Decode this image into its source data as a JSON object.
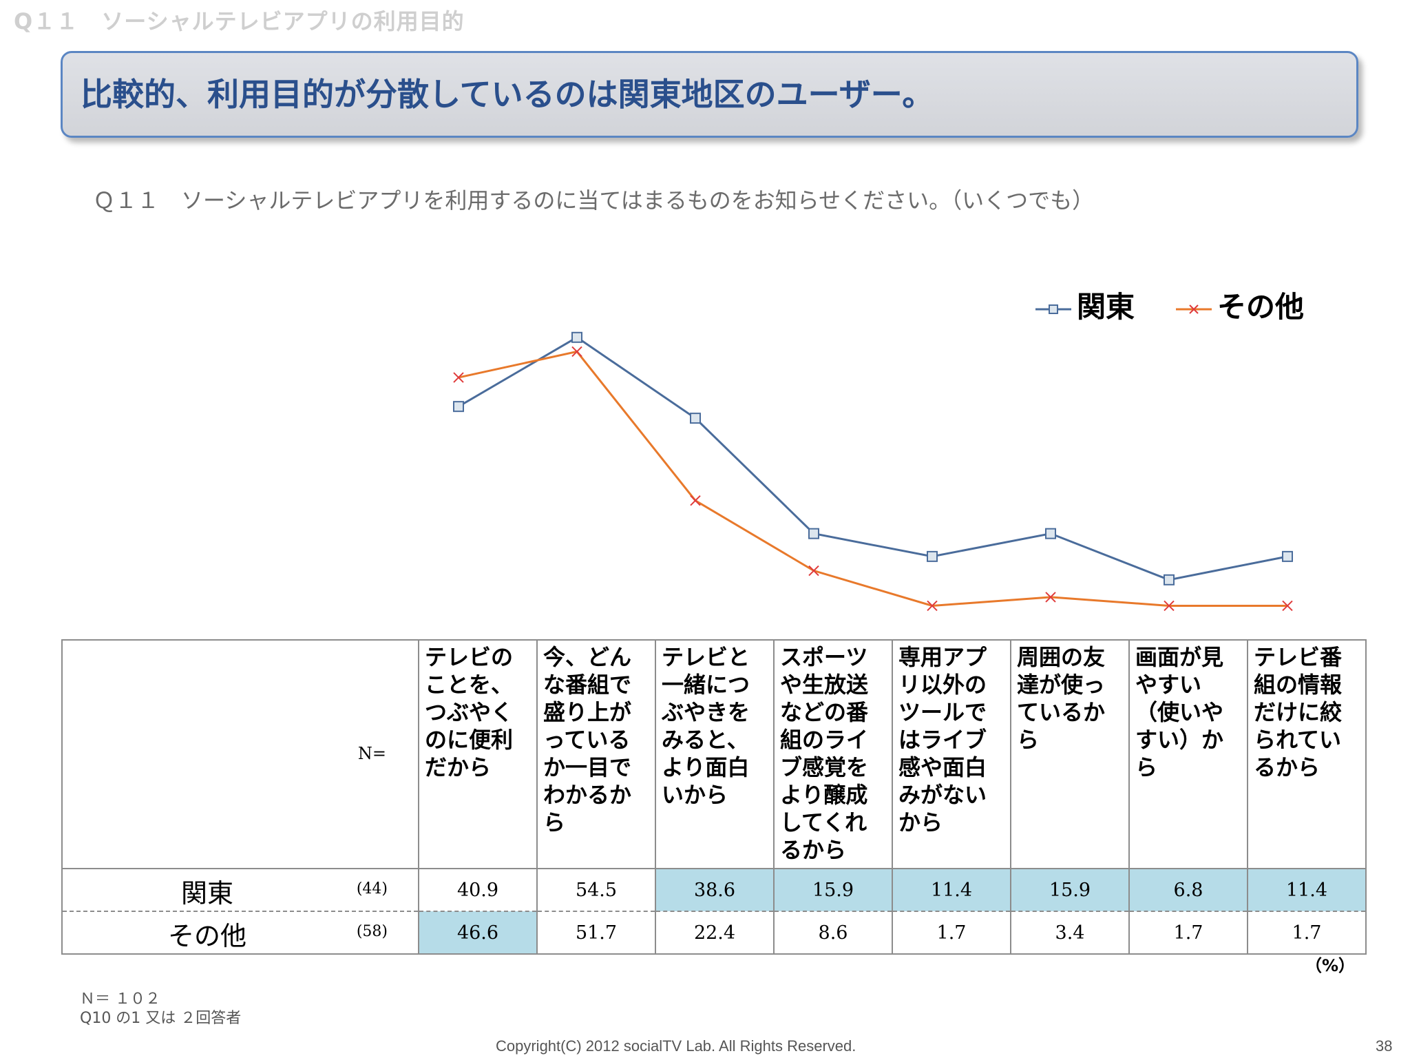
{
  "slide_label": "Q１１　ソーシャルテレビアプリの利用目的",
  "headline": "比較的、利用目的が分散しているのは関東地区のユーザー。",
  "question": "Ｑ１１　ソーシャルテレビアプリを利用するのに当てはまるものをお知らせください。（いくつでも）",
  "chart_data": {
    "type": "line",
    "categories": [
      "テレビのことを、つぶやくのに便利だから",
      "今、どんな番組で盛り上がっているか一目でわかるから",
      "テレビと一緒につぶやきをみると、より面白いから",
      "スポーツや生放送などの番組のライブ感覚をより醸成してくれるから",
      "専用アプリ以外のツールではライブ感や面白みがないから",
      "周囲の友達が使っているから",
      "画面が見やすい（使いやすい）から",
      "テレビ番組の情報だけに絞られているから"
    ],
    "series": [
      {
        "name": "関東",
        "n": "(44)",
        "values": [
          40.9,
          54.5,
          38.6,
          15.9,
          11.4,
          15.9,
          6.8,
          11.4
        ],
        "color": "#4a6c9b",
        "marker": "square"
      },
      {
        "name": "その他",
        "n": "(58)",
        "values": [
          46.6,
          51.7,
          22.4,
          8.6,
          1.7,
          3.4,
          1.7,
          1.7
        ],
        "color": "#e8792b",
        "marker": "x"
      }
    ],
    "highlight": {
      "関東": [
        false,
        false,
        true,
        true,
        true,
        true,
        true,
        true
      ],
      "その他": [
        true,
        false,
        false,
        false,
        false,
        false,
        false,
        false
      ]
    },
    "highlight_color": "#b6dce8",
    "n_label": "N=",
    "unit": "（%）",
    "legend_position": "top-right",
    "grid": false,
    "axes_visible": false
  },
  "notes": {
    "n_total": "Ｎ＝ １０２",
    "base": "Q10 の1  又は  ２回答者"
  },
  "footer": {
    "copyright": "Copyright(C) 2012 socialTV Lab. All Rights Reserved.",
    "page": "38"
  }
}
